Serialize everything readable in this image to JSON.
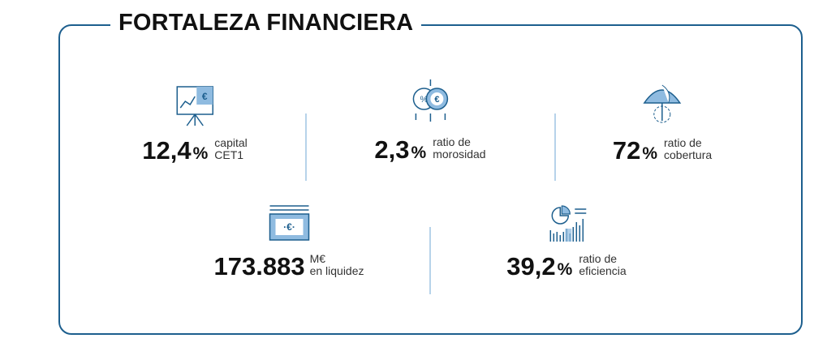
{
  "header": {
    "title": "FORTALEZA FINANCIERA"
  },
  "metrics": [
    {
      "value": "12,4",
      "unit": "%",
      "label": [
        "capital",
        "CET1"
      ]
    },
    {
      "value": "2,3",
      "unit": "%",
      "label": [
        "ratio de",
        "morosidad"
      ]
    },
    {
      "value": "72",
      "unit": "%",
      "label": [
        "ratio de",
        "cobertura"
      ]
    },
    {
      "value": "173.883",
      "unit": "M€",
      "label": [
        "en liquidez"
      ]
    },
    {
      "value": "39,2",
      "unit": "%",
      "label": [
        "ratio de",
        "eficiencia"
      ]
    }
  ]
}
